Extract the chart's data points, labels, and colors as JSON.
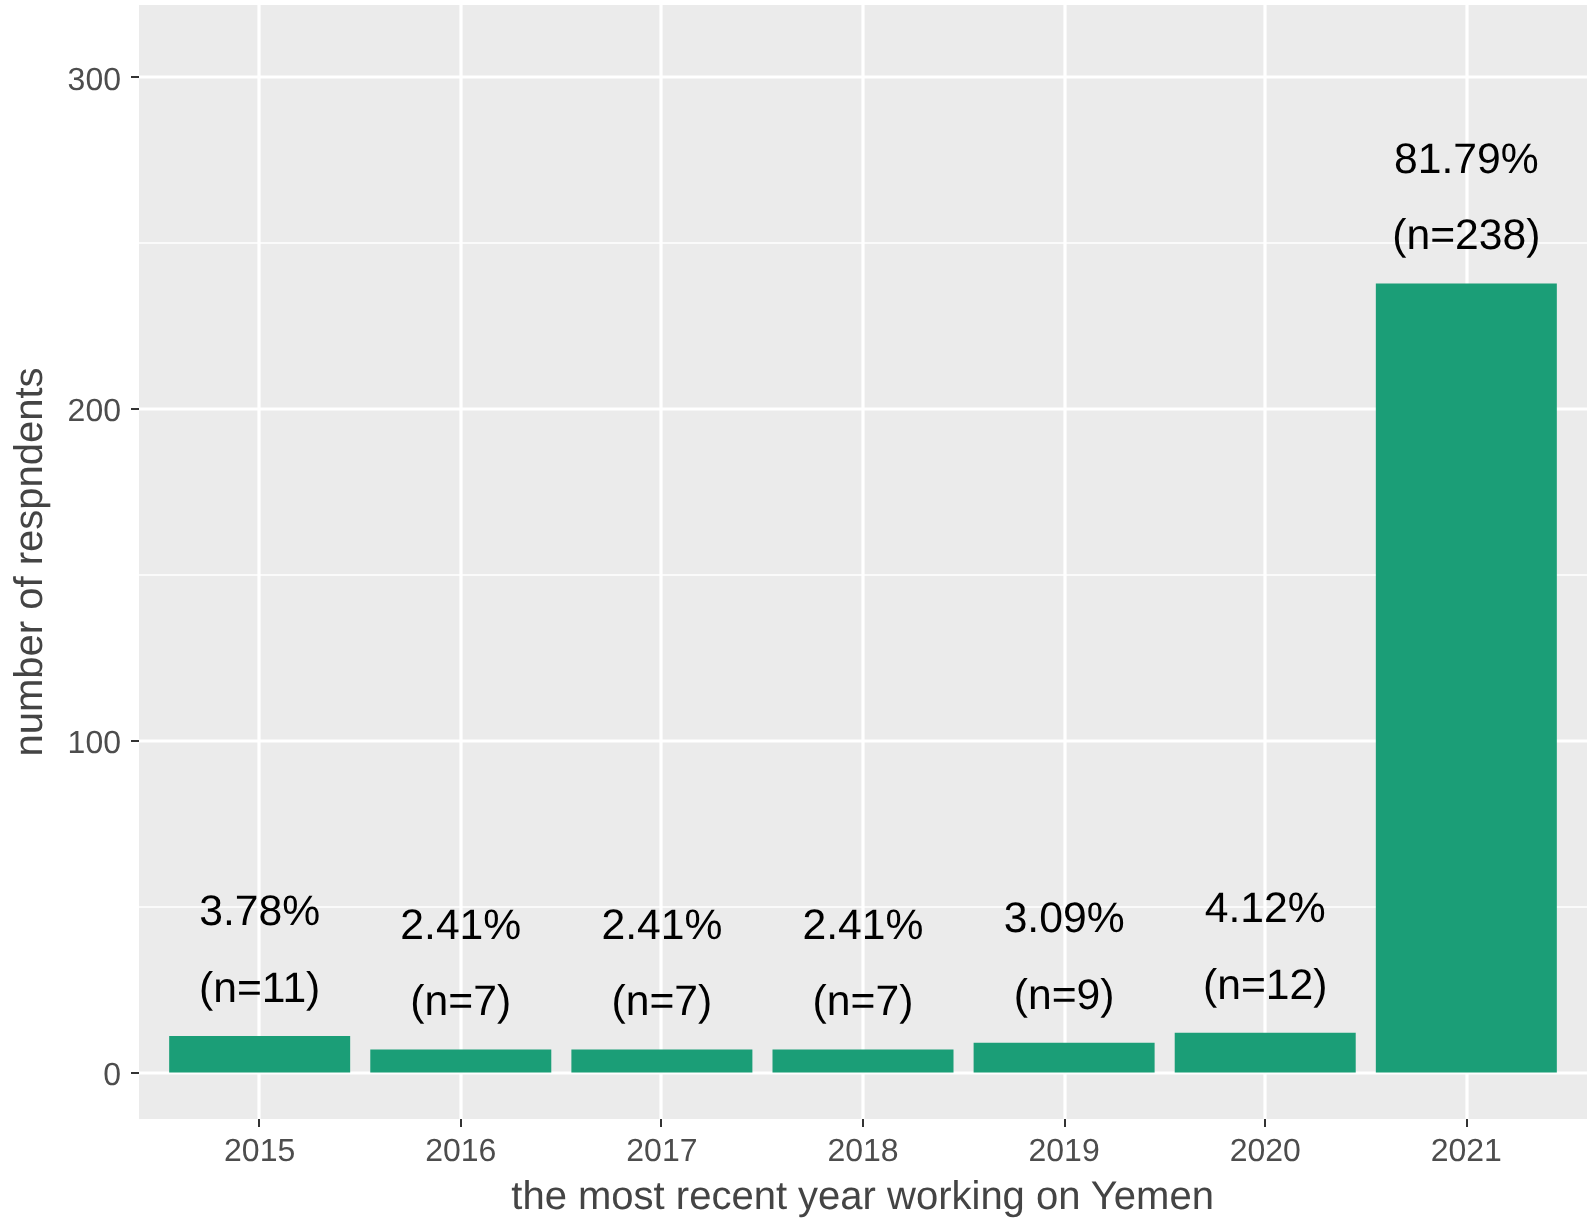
{
  "chart_data": {
    "type": "bar",
    "xlabel": "the most recent year working on Yemen",
    "ylabel": "number of respndents",
    "categories": [
      "2015",
      "2016",
      "2017",
      "2018",
      "2019",
      "2020",
      "2021"
    ],
    "values": [
      11,
      7,
      7,
      7,
      9,
      12,
      238
    ],
    "color": "#1b9e77",
    "value_labels": [
      "3.78%\n(n=11)",
      "2.41%\n(n=7)",
      "2.41%\n(n=7)",
      "2.41%\n(n=7)",
      "3.09%\n(n=9)",
      "4.12%\n(n=12)",
      "81.79%\n(n=238)"
    ],
    "ylim": [
      -14,
      322
    ],
    "yticks": [
      0,
      100,
      200,
      300
    ],
    "grid": true
  }
}
